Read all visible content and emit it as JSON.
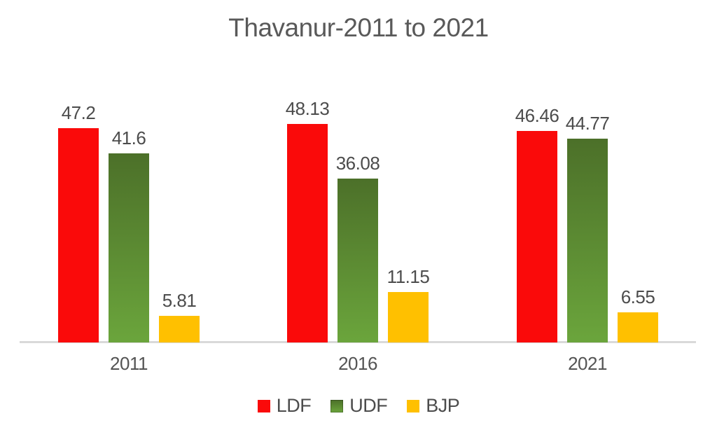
{
  "chart_data": {
    "type": "bar",
    "title": "Thavanur-2011 to 2021",
    "categories": [
      "2011",
      "2016",
      "2021"
    ],
    "series": [
      {
        "name": "LDF",
        "color": "#fa0a0a",
        "values": [
          47.2,
          48.13,
          46.46
        ]
      },
      {
        "name": "UDF",
        "color": "#5d8a33",
        "color_gradient": [
          "#4c7029",
          "#6ba53c"
        ],
        "values": [
          41.6,
          36.08,
          44.77
        ]
      },
      {
        "name": "BJP",
        "color": "#ffc000",
        "values": [
          5.81,
          11.15,
          6.55
        ]
      }
    ],
    "ylim": [
      0,
      50
    ],
    "grid": false,
    "y_axis_visible": false,
    "data_labels": true,
    "legend_position": "bottom",
    "axis_line_color": "#d9d9d9",
    "title_color": "#595959",
    "label_color": "#4c4c4c"
  }
}
